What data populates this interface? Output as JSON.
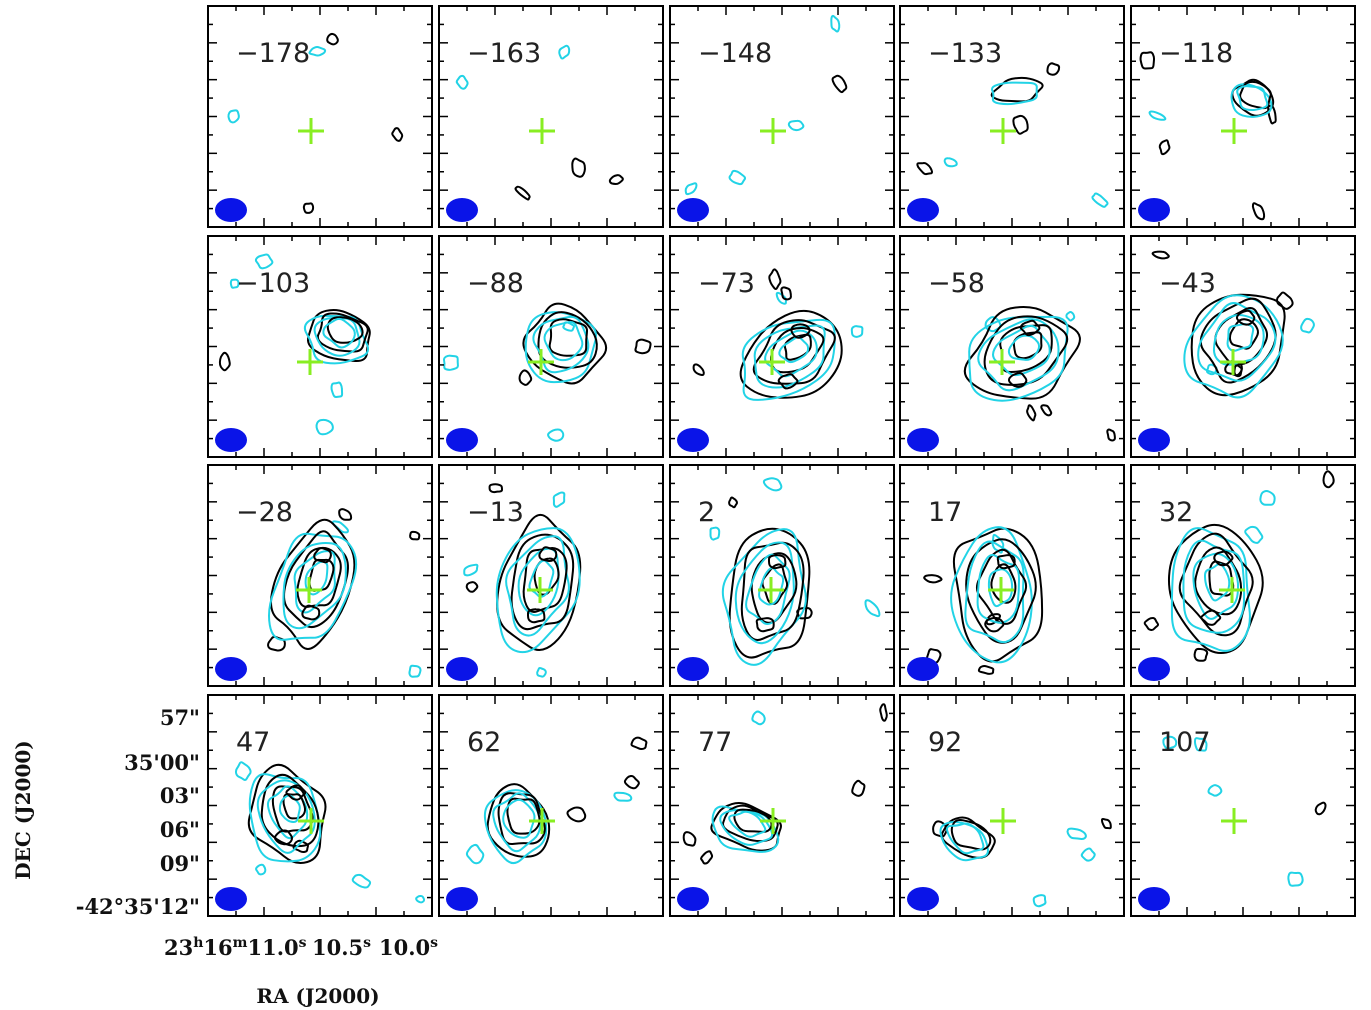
{
  "chart_data": {
    "type": "channel-map",
    "velocities": [
      -178,
      -163,
      -148,
      -133,
      -118,
      -103,
      -88,
      -73,
      -58,
      -43,
      -28,
      -13,
      2,
      17,
      32,
      47,
      62,
      77,
      92,
      107
    ],
    "grid": {
      "rows": 4,
      "cols": 5
    },
    "xlabel": "RA (J2000)",
    "ylabel": "DEC (J2000)",
    "x_ticks": [
      {
        "main": "23",
        "sup": "h",
        "main2": "16",
        "sup2": "m",
        "main3": "11.0",
        "sup3": "s"
      },
      {
        "main": "10.5",
        "sup": "s"
      },
      {
        "main": "10.0",
        "sup": "s"
      }
    ],
    "y_ticks": [
      "57\"",
      "35'00\"",
      "03\"",
      "06\"",
      "09\"",
      "-42°35'12\""
    ],
    "contour_colors": {
      "set1": "#000000",
      "set2": "#22d3e6"
    },
    "marker": {
      "symbol": "plus",
      "color": "#88ee22"
    },
    "beam": {
      "color": "#0a14e8"
    }
  }
}
